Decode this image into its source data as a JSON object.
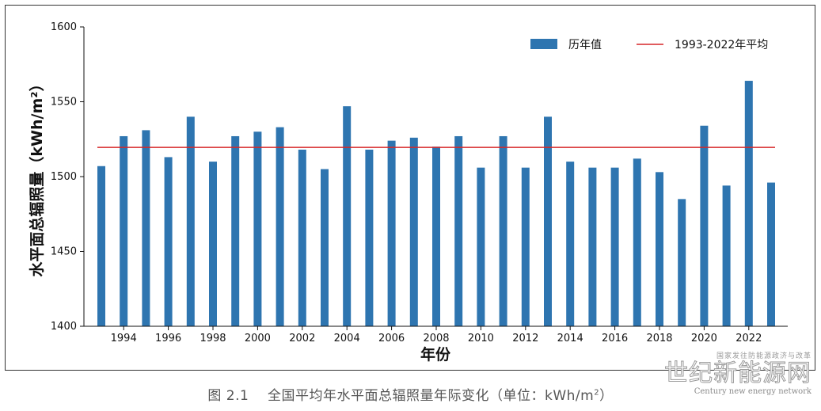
{
  "chart_data": {
    "type": "bar",
    "x": [
      1993,
      1994,
      1995,
      1996,
      1997,
      1998,
      1999,
      2000,
      2001,
      2002,
      2003,
      2004,
      2005,
      2006,
      2007,
      2008,
      2009,
      2010,
      2011,
      2012,
      2013,
      2014,
      2015,
      2016,
      2017,
      2018,
      2019,
      2020,
      2021,
      2022,
      2023
    ],
    "values": [
      1507,
      1527,
      1531,
      1513,
      1540,
      1510,
      1527,
      1530,
      1533,
      1518,
      1505,
      1547,
      1518,
      1524,
      1526,
      1520,
      1527,
      1506,
      1527,
      1506,
      1540,
      1510,
      1506,
      1506,
      1512,
      1503,
      1485,
      1534,
      1494,
      1564,
      1496
    ],
    "xticks": [
      "1994",
      "1996",
      "1998",
      "2000",
      "2002",
      "2004",
      "2006",
      "2008",
      "2010",
      "2012",
      "2014",
      "2016",
      "2018",
      "2020",
      "2022"
    ],
    "yticks": [
      "1400",
      "1450",
      "1500",
      "1550",
      "1600"
    ],
    "ylim": [
      1400,
      1600
    ],
    "xlabel": "年份",
    "ylabel": "水平面总辐照量（kWh/m²）",
    "series": [
      {
        "name": "历年值",
        "type": "bar",
        "color": "#2e75b0"
      },
      {
        "name": "1993-2022年平均",
        "type": "line",
        "value": 1519.5,
        "color": "#d62728"
      }
    ],
    "legend": "top-right",
    "grid": false
  },
  "caption": {
    "label": "图 2.1",
    "text": "全国平均年水平面总辐照量年际变化（单位：kWh/m",
    "sup": "2",
    "close": "）"
  },
  "watermark": {
    "sub": "国家发往防能源政济与改革",
    "main": "世纪新能源网",
    "en": "Century new energy network"
  }
}
